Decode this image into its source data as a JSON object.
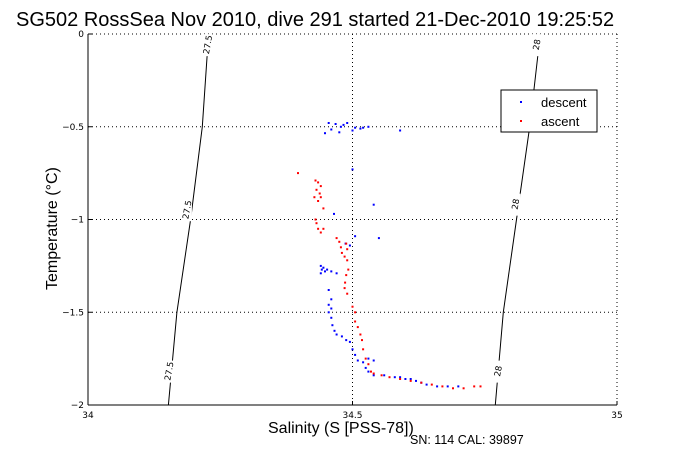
{
  "chart_data": {
    "type": "scatter",
    "title": "SG502 RossSea Nov 2010, dive 291 started 21-Dec-2010 19:25:52",
    "xlabel": "Salinity (S [PSS-78])",
    "ylabel": "Temperature (°C)",
    "xlim": [
      34,
      35
    ],
    "ylim": [
      -2,
      0
    ],
    "xticks": [
      "34",
      "34.5",
      "35"
    ],
    "xtick_values": [
      34,
      34.5,
      35
    ],
    "yticks": [
      "0",
      "-0.5",
      "-1",
      "-1.5",
      "-2"
    ],
    "ytick_values": [
      0,
      -0.5,
      -1,
      -1.5,
      -2
    ],
    "grid": true,
    "legend": {
      "position": "top-right",
      "entries": [
        "descent",
        "ascent"
      ]
    },
    "footer": "SN: 114  CAL: 39897",
    "density_contours": [
      {
        "label": "27.5",
        "points": [
          [
            34.152,
            -2.0
          ],
          [
            34.168,
            -1.5
          ],
          [
            34.194,
            -1.0
          ],
          [
            34.216,
            -0.5
          ],
          [
            34.228,
            0.0
          ]
        ],
        "label_positions": [
          [
            34.153,
            -1.82
          ],
          [
            34.187,
            -0.95
          ],
          [
            34.226,
            -0.06
          ]
        ]
      },
      {
        "label": "28",
        "points": [
          [
            34.77,
            -2.0
          ],
          [
            34.785,
            -1.5
          ],
          [
            34.81,
            -1.0
          ],
          [
            34.835,
            -0.5
          ],
          [
            34.855,
            0.0
          ]
        ],
        "label_positions": [
          [
            34.775,
            -1.82
          ],
          [
            34.808,
            -0.92
          ],
          [
            34.848,
            -0.06
          ]
        ]
      }
    ],
    "series": [
      {
        "name": "descent",
        "color": "#0000ff",
        "points": [
          [
            34.455,
            -0.48
          ],
          [
            34.468,
            -0.485
          ],
          [
            34.478,
            -0.5
          ],
          [
            34.483,
            -0.49
          ],
          [
            34.49,
            -0.48
          ],
          [
            34.5,
            -0.52
          ],
          [
            34.505,
            -0.505
          ],
          [
            34.515,
            -0.51
          ],
          [
            34.52,
            -0.505
          ],
          [
            34.53,
            -0.5
          ],
          [
            34.448,
            -0.535
          ],
          [
            34.46,
            -0.515
          ],
          [
            34.475,
            -0.53
          ],
          [
            34.59,
            -0.52
          ],
          [
            34.5,
            -0.73
          ],
          [
            34.54,
            -0.92
          ],
          [
            34.465,
            -0.97
          ],
          [
            34.55,
            -1.1
          ],
          [
            34.505,
            -1.09
          ],
          [
            34.495,
            -1.14
          ],
          [
            34.487,
            -1.13
          ],
          [
            34.44,
            -1.25
          ],
          [
            34.442,
            -1.27
          ],
          [
            34.445,
            -1.26
          ],
          [
            34.448,
            -1.28
          ],
          [
            34.44,
            -1.29
          ],
          [
            34.452,
            -1.27
          ],
          [
            34.46,
            -1.28
          ],
          [
            34.47,
            -1.29
          ],
          [
            34.455,
            -1.38
          ],
          [
            34.46,
            -1.43
          ],
          [
            34.455,
            -1.46
          ],
          [
            34.46,
            -1.48
          ],
          [
            34.455,
            -1.5
          ],
          [
            34.46,
            -1.53
          ],
          [
            34.462,
            -1.57
          ],
          [
            34.466,
            -1.6
          ],
          [
            34.47,
            -1.62
          ],
          [
            34.48,
            -1.63
          ],
          [
            34.488,
            -1.65
          ],
          [
            34.495,
            -1.66
          ],
          [
            34.5,
            -1.7
          ],
          [
            34.505,
            -1.73
          ],
          [
            34.51,
            -1.76
          ],
          [
            34.52,
            -1.77
          ],
          [
            34.53,
            -1.75
          ],
          [
            34.54,
            -1.76
          ],
          [
            34.525,
            -1.8
          ],
          [
            34.53,
            -1.82
          ],
          [
            34.54,
            -1.84
          ],
          [
            34.56,
            -1.84
          ],
          [
            34.58,
            -1.85
          ],
          [
            34.6,
            -1.86
          ],
          [
            34.62,
            -1.87
          ],
          [
            34.64,
            -1.89
          ],
          [
            34.66,
            -1.9
          ],
          [
            34.68,
            -1.9
          ],
          [
            34.7,
            -1.9
          ],
          [
            34.59,
            -1.85
          ],
          [
            34.61,
            -1.86
          ],
          [
            34.63,
            -1.88
          ]
        ]
      },
      {
        "name": "ascent",
        "color": "#ff0000",
        "points": [
          [
            34.397,
            -0.75
          ],
          [
            34.43,
            -0.79
          ],
          [
            34.435,
            -0.8
          ],
          [
            34.44,
            -0.82
          ],
          [
            34.432,
            -0.84
          ],
          [
            34.438,
            -0.86
          ],
          [
            34.428,
            -0.88
          ],
          [
            34.435,
            -0.9
          ],
          [
            34.44,
            -0.88
          ],
          [
            34.445,
            -0.94
          ],
          [
            34.43,
            -1.0
          ],
          [
            34.432,
            -1.02
          ],
          [
            34.435,
            -1.05
          ],
          [
            34.44,
            -1.07
          ],
          [
            34.445,
            -1.05
          ],
          [
            34.47,
            -1.1
          ],
          [
            34.475,
            -1.12
          ],
          [
            34.478,
            -1.15
          ],
          [
            34.48,
            -1.18
          ],
          [
            34.485,
            -1.2
          ],
          [
            34.488,
            -1.13
          ],
          [
            34.49,
            -1.16
          ],
          [
            34.49,
            -1.22
          ],
          [
            34.492,
            -1.27
          ],
          [
            34.488,
            -1.3
          ],
          [
            34.486,
            -1.34
          ],
          [
            34.485,
            -1.37
          ],
          [
            34.49,
            -1.4
          ],
          [
            34.5,
            -1.47
          ],
          [
            34.505,
            -1.5
          ],
          [
            34.505,
            -1.55
          ],
          [
            34.51,
            -1.58
          ],
          [
            34.515,
            -1.62
          ],
          [
            34.518,
            -1.65
          ],
          [
            34.52,
            -1.7
          ],
          [
            34.525,
            -1.75
          ],
          [
            34.53,
            -1.78
          ],
          [
            34.535,
            -1.82
          ],
          [
            34.54,
            -1.83
          ],
          [
            34.555,
            -1.84
          ],
          [
            34.57,
            -1.85
          ],
          [
            34.59,
            -1.86
          ],
          [
            34.61,
            -1.87
          ],
          [
            34.63,
            -1.88
          ],
          [
            34.65,
            -1.89
          ],
          [
            34.67,
            -1.9
          ],
          [
            34.69,
            -1.91
          ],
          [
            34.71,
            -1.91
          ],
          [
            34.73,
            -1.9
          ],
          [
            34.742,
            -1.9
          ]
        ]
      }
    ]
  }
}
